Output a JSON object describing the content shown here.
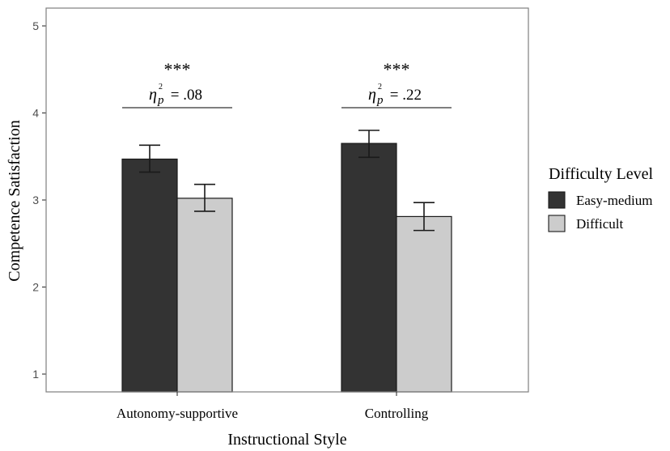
{
  "chart_data": {
    "type": "bar",
    "xlabel": "Instructional Style",
    "ylabel": "Competence Satisfaction",
    "ylim": [
      1,
      5
    ],
    "yticks": [
      "1",
      "2",
      "3",
      "4",
      "5"
    ],
    "categories": [
      "Autonomy-supportive",
      "Controlling"
    ],
    "legend": {
      "title": "Difficulty Level",
      "position": "right"
    },
    "series": [
      {
        "name": "Easy-medium",
        "color": "#333333",
        "values": [
          3.47,
          3.65
        ],
        "error_low": [
          3.32,
          3.49
        ],
        "error_high": [
          3.63,
          3.8
        ]
      },
      {
        "name": "Difficult",
        "color": "#cccccc",
        "values": [
          3.02,
          2.81
        ],
        "error_low": [
          2.87,
          2.65
        ],
        "error_high": [
          3.18,
          2.97
        ]
      }
    ],
    "annotations": [
      {
        "category": "Autonomy-supportive",
        "significance": "***",
        "eta_symbol": "η",
        "eta_sub": "p",
        "eta_sup": "2",
        "effect": " = .08"
      },
      {
        "category": "Controlling",
        "significance": "***",
        "eta_symbol": "η",
        "eta_sub": "p",
        "eta_sup": "2",
        "effect": " = .22"
      }
    ],
    "grid": false,
    "panel_border": true
  }
}
